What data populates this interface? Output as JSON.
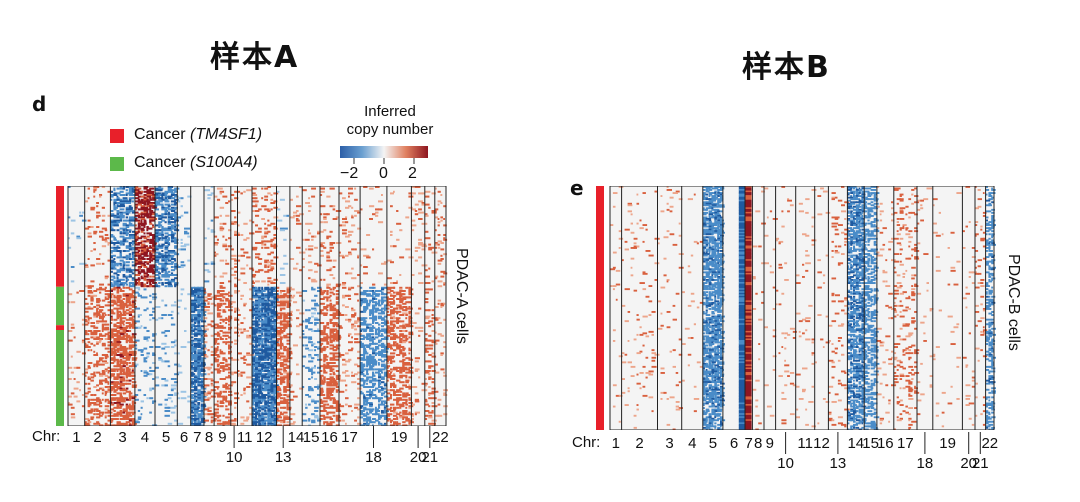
{
  "titles": {
    "sample_a": "样本A",
    "sample_b": "样本B"
  },
  "panel_d": {
    "letter": "d",
    "legend": [
      {
        "label": "Cancer",
        "gene": "(TM4SF1)",
        "color": "#e8202a"
      },
      {
        "label": "Cancer",
        "gene": "(S100A4)",
        "color": "#5cb94a"
      }
    ],
    "scale": {
      "title_line1": "Inferred",
      "title_line2": "copy number",
      "ticks": [
        "−2",
        "0",
        "2"
      ],
      "colors": [
        "#2c5fa8",
        "#f4f4f4",
        "#8e1620"
      ]
    },
    "y_label": "PDAC-A cells",
    "chr_prefix": "Chr:",
    "chromosomes": [
      "1",
      "2",
      "3",
      "4",
      "5",
      "6",
      "7",
      "8",
      "9",
      "10",
      "11",
      "12",
      "13",
      "14",
      "15",
      "16",
      "17",
      "18",
      "19",
      "20",
      "21",
      "22"
    ]
  },
  "panel_e": {
    "letter": "e",
    "y_label": "PDAC-B cells",
    "chr_prefix": "Chr:",
    "chromosomes": [
      "1",
      "2",
      "3",
      "4",
      "5",
      "6",
      "7",
      "8",
      "9",
      "10",
      "11",
      "12",
      "13",
      "14",
      "15",
      "16",
      "17",
      "18",
      "19",
      "20",
      "21",
      "22"
    ]
  }
}
